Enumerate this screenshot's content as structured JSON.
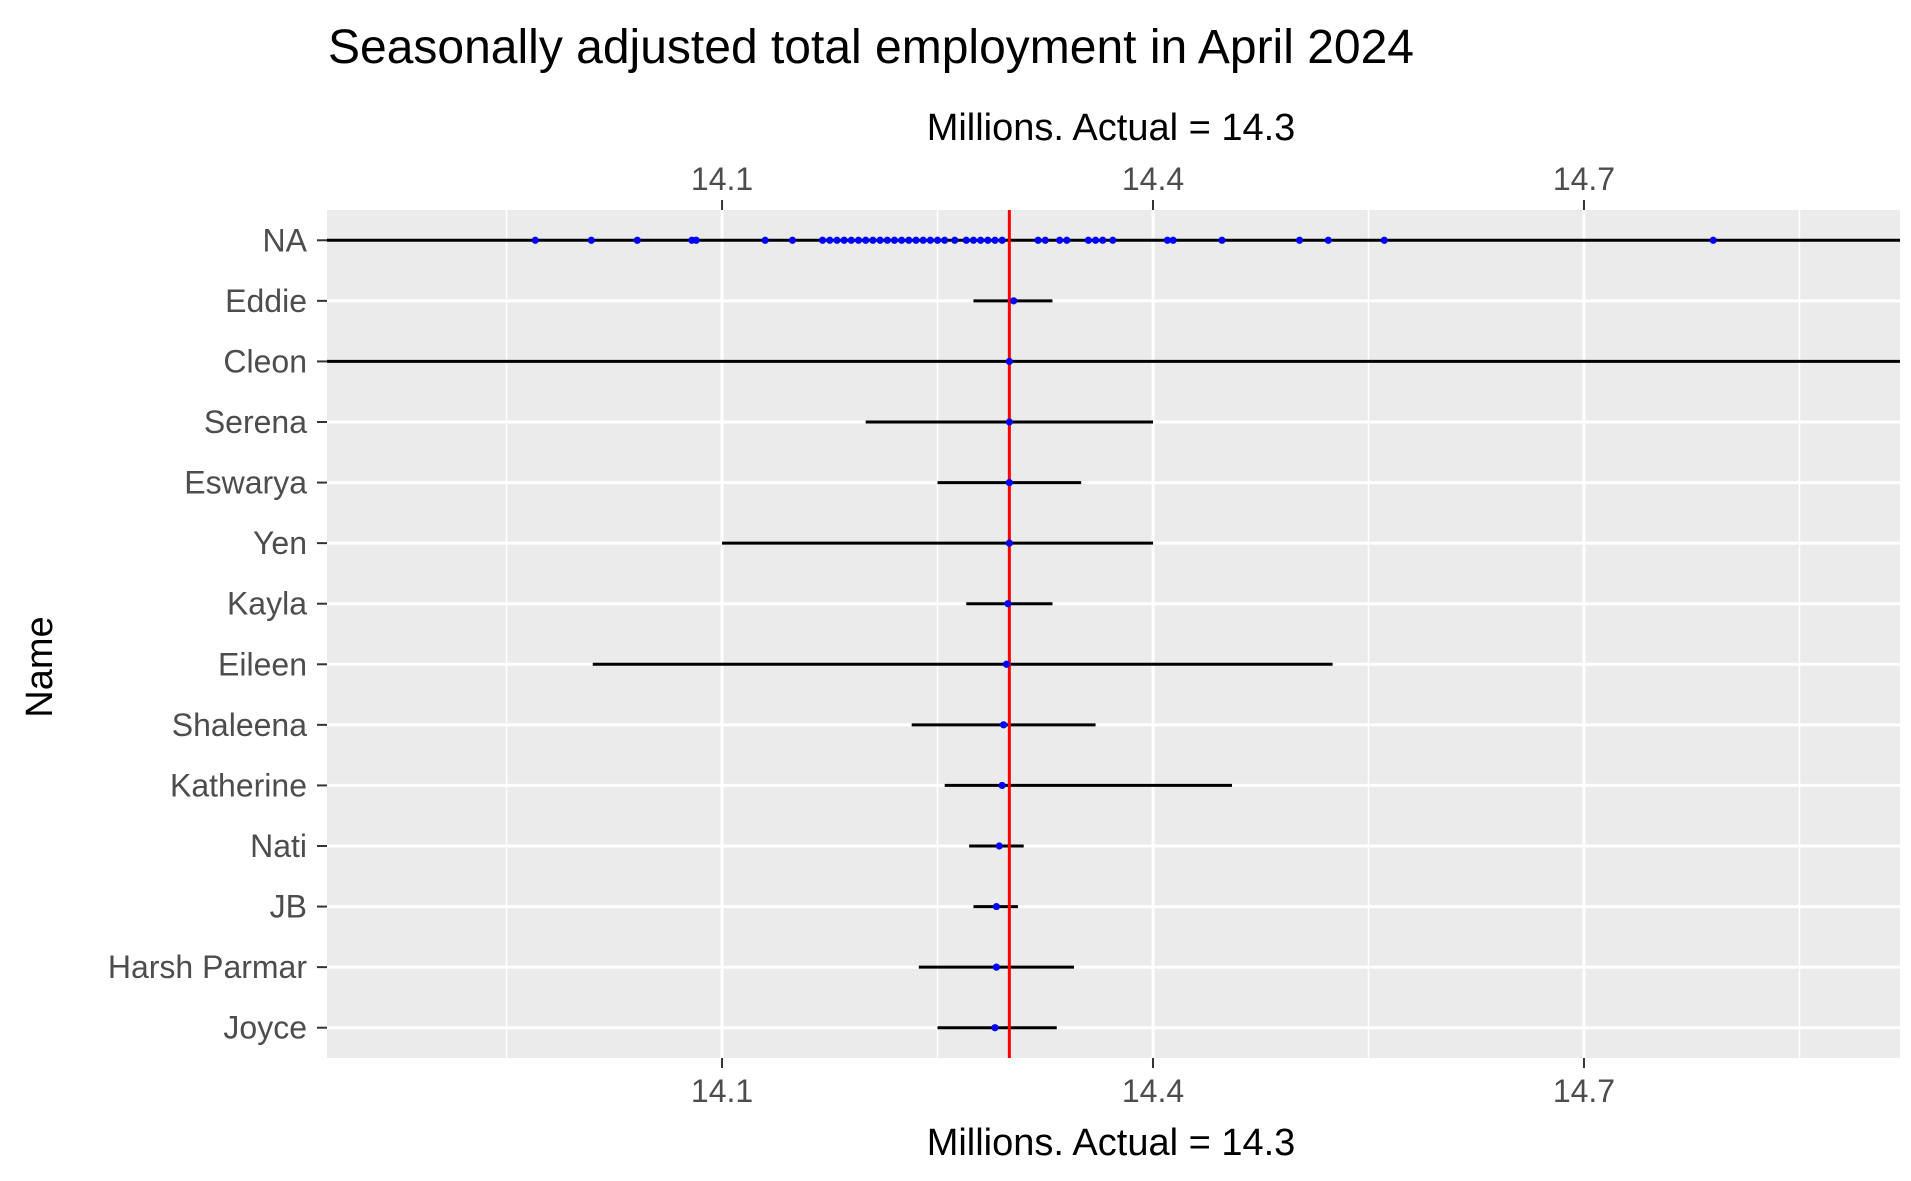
{
  "chart_data": {
    "type": "scatter",
    "title": "Seasonally adjusted total employment in April 2024",
    "xlabel_top": "Millions. Actual = 14.3",
    "xlabel_bottom": "Millions. Actual = 14.3",
    "ylabel": "Name",
    "xlim": [
      13.825,
      14.92
    ],
    "x_ticks": [
      "14.1",
      "14.4",
      "14.7"
    ],
    "x_tick_values": [
      14.1,
      14.4,
      14.7
    ],
    "grid": true,
    "actual_value": 14.3,
    "colors": {
      "panel_background": "#ebebeb",
      "grid": "#ffffff",
      "range_line": "#000000",
      "point": "#0000ff",
      "actual_line": "#ff0000"
    },
    "categories": [
      "NA",
      "Eddie",
      "Cleon",
      "Serena",
      "Eswarya",
      "Yen",
      "Kayla",
      "Eileen",
      "Shaleena",
      "Katherine",
      "Nati",
      "JB",
      "Harsh Parmar",
      "Joyce"
    ],
    "ranges": [
      {
        "name": "NA",
        "low": 13.825,
        "high": 14.92
      },
      {
        "name": "Eddie",
        "low": 14.275,
        "high": 14.33
      },
      {
        "name": "Cleon",
        "low": 13.825,
        "high": 14.92
      },
      {
        "name": "Serena",
        "low": 14.2,
        "high": 14.4
      },
      {
        "name": "Eswarya",
        "low": 14.25,
        "high": 14.35
      },
      {
        "name": "Yen",
        "low": 14.1,
        "high": 14.4
      },
      {
        "name": "Kayla",
        "low": 14.27,
        "high": 14.33
      },
      {
        "name": "Eileen",
        "low": 14.01,
        "high": 14.525
      },
      {
        "name": "Shaleena",
        "low": 14.232,
        "high": 14.36
      },
      {
        "name": "Katherine",
        "low": 14.255,
        "high": 14.455
      },
      {
        "name": "Nati",
        "low": 14.272,
        "high": 14.31
      },
      {
        "name": "JB",
        "low": 14.275,
        "high": 14.306
      },
      {
        "name": "Harsh Parmar",
        "low": 14.237,
        "high": 14.345
      },
      {
        "name": "Joyce",
        "low": 14.25,
        "high": 14.333
      }
    ],
    "points": [
      {
        "name": "NA",
        "x": [
          13.97,
          14.009,
          14.041,
          14.079,
          14.082,
          14.13,
          14.149,
          14.17,
          14.175,
          14.18,
          14.185,
          14.19,
          14.195,
          14.2,
          14.205,
          14.21,
          14.215,
          14.22,
          14.225,
          14.23,
          14.235,
          14.24,
          14.245,
          14.25,
          14.255,
          14.262,
          14.27,
          14.275,
          14.28,
          14.285,
          14.29,
          14.295,
          14.32,
          14.325,
          14.335,
          14.34,
          14.355,
          14.36,
          14.365,
          14.372,
          14.41,
          14.414,
          14.448,
          14.502,
          14.522,
          14.561,
          14.79
        ]
      },
      {
        "name": "Eddie",
        "x": [
          14.303
        ]
      },
      {
        "name": "Cleon",
        "x": [
          14.3
        ]
      },
      {
        "name": "Serena",
        "x": [
          14.3
        ]
      },
      {
        "name": "Eswarya",
        "x": [
          14.3
        ]
      },
      {
        "name": "Yen",
        "x": [
          14.3
        ]
      },
      {
        "name": "Kayla",
        "x": [
          14.299
        ]
      },
      {
        "name": "Eileen",
        "x": [
          14.298
        ]
      },
      {
        "name": "Shaleena",
        "x": [
          14.296
        ]
      },
      {
        "name": "Katherine",
        "x": [
          14.295
        ]
      },
      {
        "name": "Nati",
        "x": [
          14.293
        ]
      },
      {
        "name": "JB",
        "x": [
          14.291
        ]
      },
      {
        "name": "Harsh Parmar",
        "x": [
          14.291
        ]
      },
      {
        "name": "Joyce",
        "x": [
          14.29
        ]
      }
    ]
  }
}
